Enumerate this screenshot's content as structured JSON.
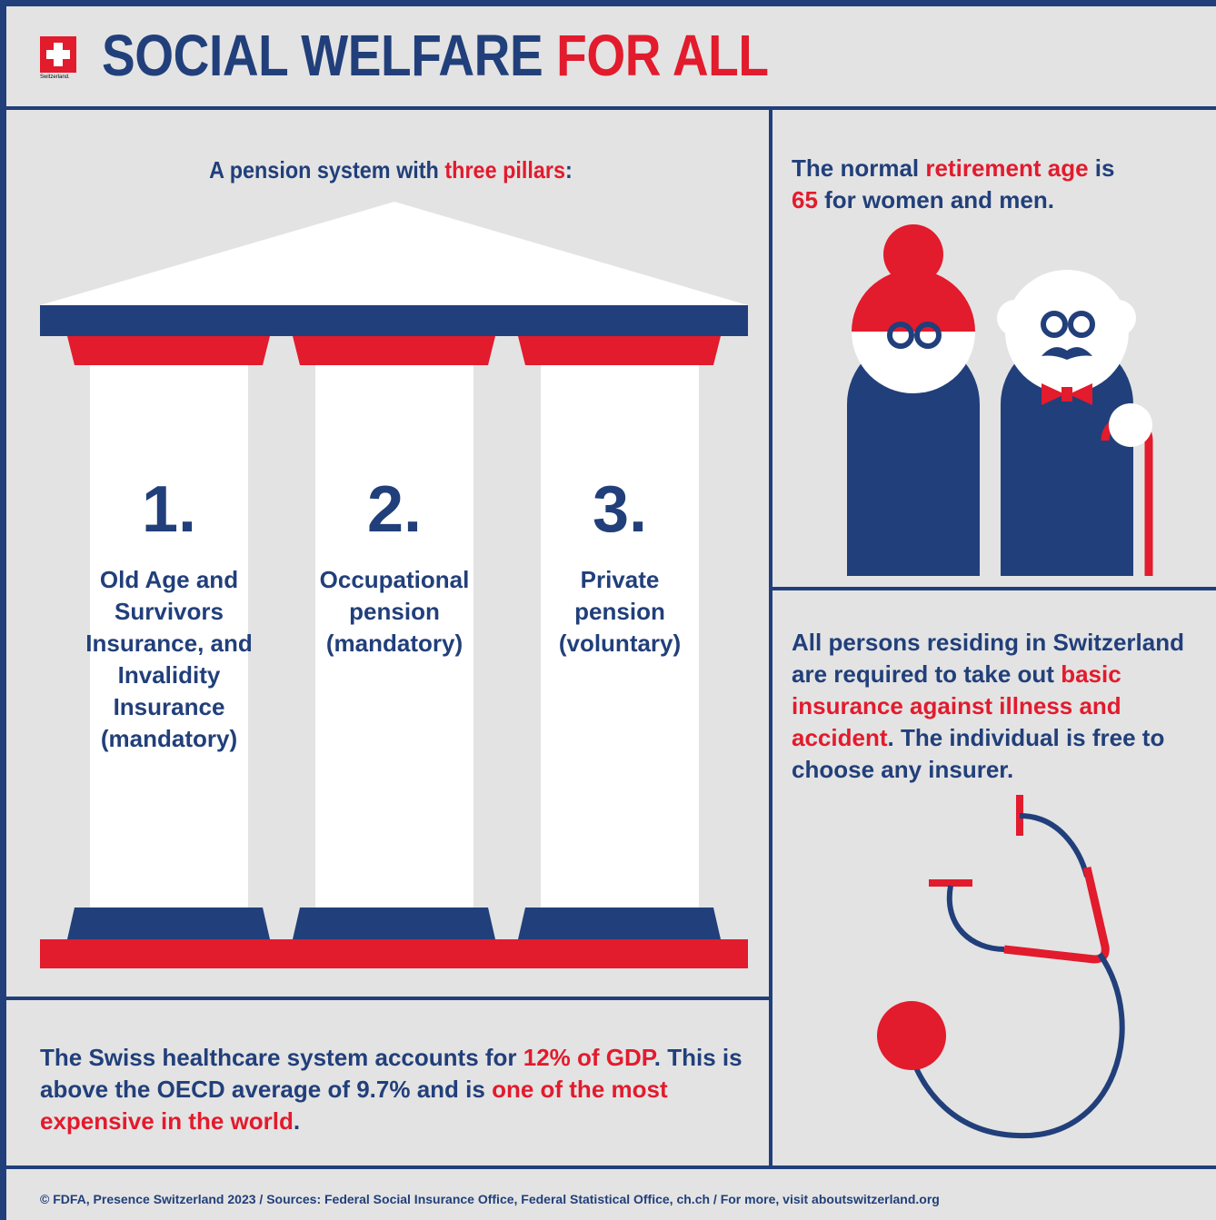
{
  "header": {
    "logo_text": "Switzerland.",
    "title_part1": "SOCIAL WELFARE ",
    "title_part2": "FOR ALL"
  },
  "pension": {
    "heading_a": "A pension system with ",
    "heading_b": "three pillars",
    "heading_c": ":",
    "pillars": [
      {
        "number": "1.",
        "label": "Old Age and Survivors Insurance, and Invalidity Insurance (mandatory)"
      },
      {
        "number": "2.",
        "label": "Occupational pension (mandatory)"
      },
      {
        "number": "3.",
        "label": "Private pension (voluntary)"
      }
    ]
  },
  "retirement": {
    "a": "The normal ",
    "b": "retirement age",
    "c": " is",
    "d": "65",
    "e": " for women and men."
  },
  "insurance": {
    "a": "All persons residing in Switzerland are required to take out ",
    "b": "basic insurance against illness and accident",
    "c": ". The individual is free to choose any insurer."
  },
  "healthcare": {
    "a": "The Swiss healthcare system accounts for ",
    "b": "12% of GDP",
    "c": ". This is above the OECD average of 9.7% and is ",
    "d": "one of the most expensive in the world",
    "e": "."
  },
  "footer": {
    "text": "© FDFA, Presence Switzerland 2023 / Sources: Federal Social Insurance Office, Federal Statistical Office, ch.ch / For more, visit aboutswitzerland.org"
  },
  "colors": {
    "navy": "#213f7a",
    "red": "#e21b2d",
    "background": "#e3e3e3"
  }
}
